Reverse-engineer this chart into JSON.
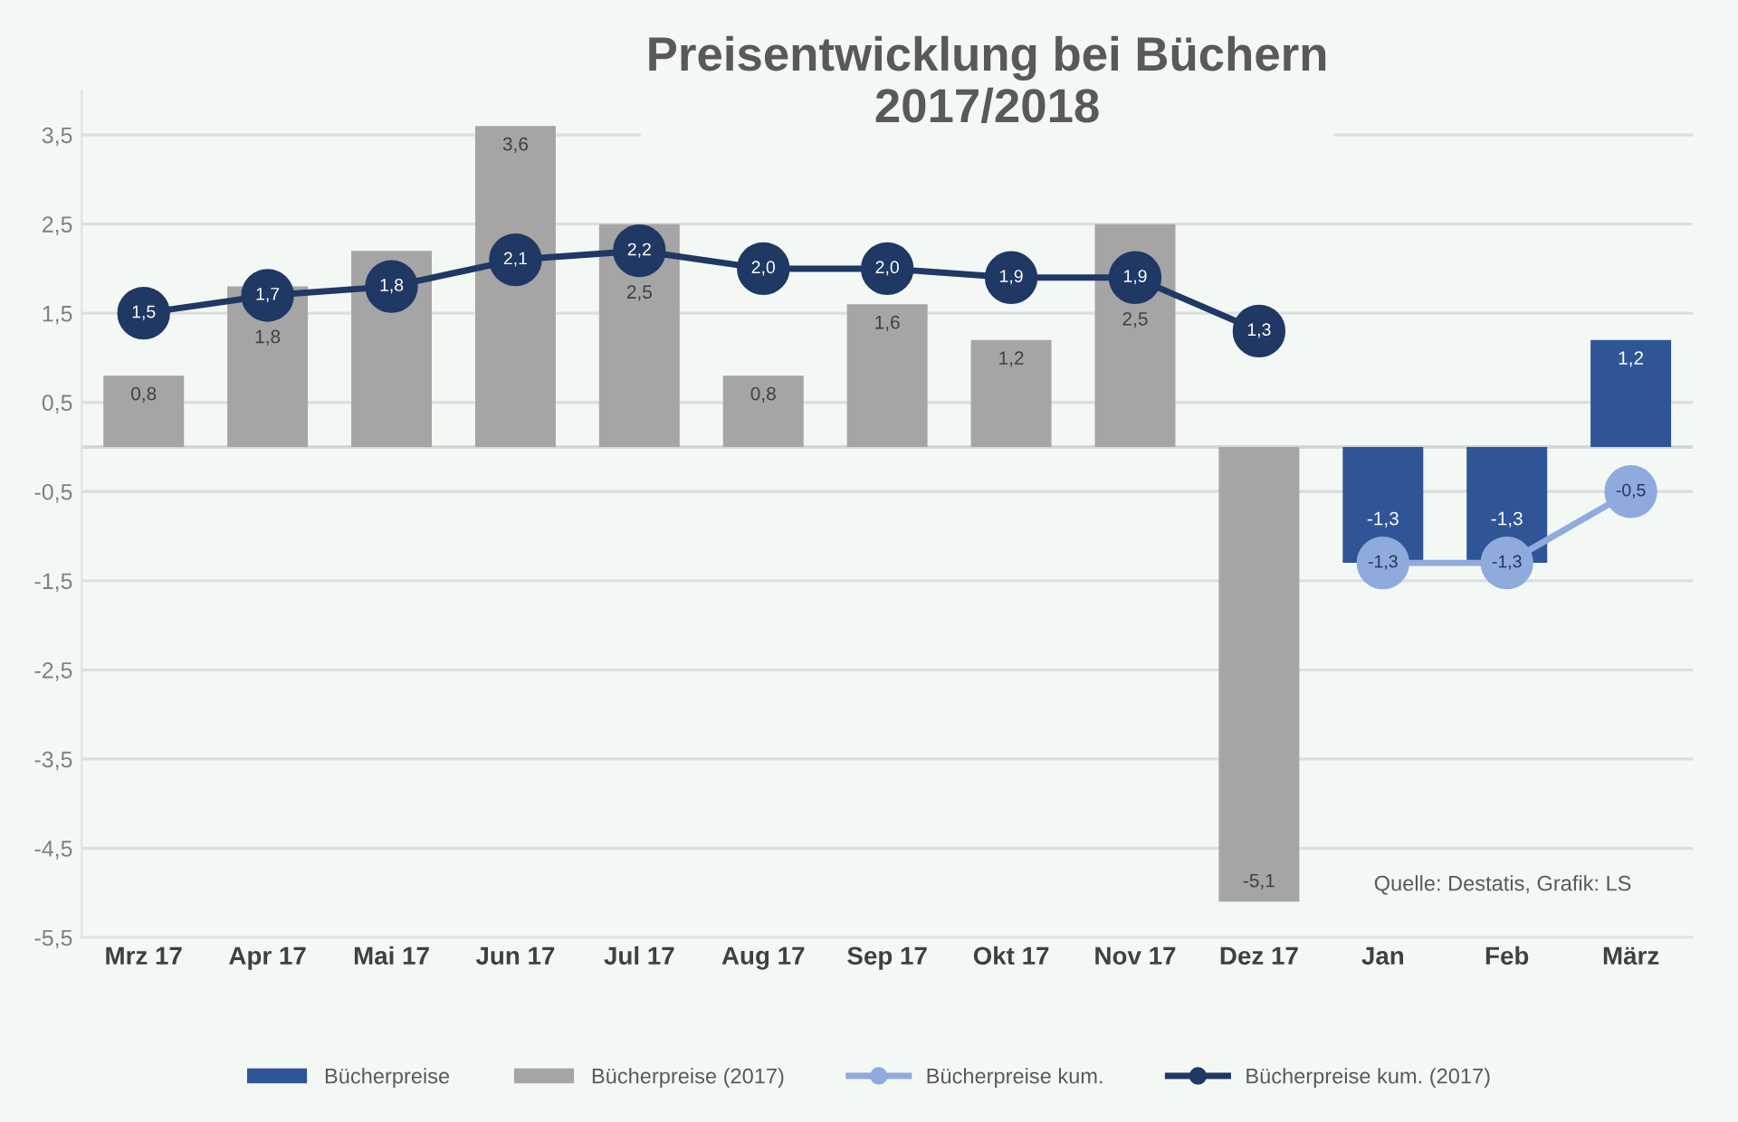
{
  "chart_data": {
    "type": "bar",
    "title": "Preisentwicklung bei Büchern 2017/2018",
    "categories": [
      "Mrz 17",
      "Apr 17",
      "Mai 17",
      "Jun 17",
      "Jul 17",
      "Aug 17",
      "Sep 17",
      "Okt 17",
      "Nov 17",
      "Dez 17",
      "Jan",
      "Feb",
      "März"
    ],
    "series": [
      {
        "name": "Bücherpreise",
        "color": "#2f5597",
        "values": [
          null,
          null,
          null,
          null,
          null,
          null,
          null,
          null,
          null,
          null,
          -1.3,
          -1.3,
          1.2
        ],
        "value_labels": [
          null,
          null,
          null,
          null,
          null,
          null,
          null,
          null,
          null,
          null,
          "-1,3",
          "-1,3",
          "1,2"
        ]
      },
      {
        "name": "Bücherpreise (2017)",
        "color": "#a5a5a5",
        "values": [
          0.8,
          1.8,
          2.2,
          3.6,
          2.5,
          0.8,
          1.6,
          1.2,
          2.5,
          -5.1,
          null,
          null,
          null
        ],
        "value_labels": [
          "0,8",
          "1,8",
          null,
          "3,6",
          "2,5",
          "0,8",
          "1,6",
          "1,2",
          "2,5",
          "-5,1",
          null,
          null,
          null
        ]
      },
      {
        "name": "Bücherpreise kum.",
        "type": "line",
        "color": "#8faadc",
        "values": [
          null,
          null,
          null,
          null,
          null,
          null,
          null,
          null,
          null,
          null,
          -1.3,
          -1.3,
          -0.5
        ],
        "value_labels": [
          null,
          null,
          null,
          null,
          null,
          null,
          null,
          null,
          null,
          null,
          "-1,3",
          "-1,3",
          "-0,5"
        ]
      },
      {
        "name": "Bücherpreise kum. (2017)",
        "type": "line",
        "color": "#1f3864",
        "values": [
          1.5,
          1.7,
          1.8,
          2.1,
          2.2,
          2.0,
          2.0,
          1.9,
          1.9,
          1.3,
          null,
          null,
          null
        ],
        "value_labels": [
          "1,5",
          "1,7",
          "1,8",
          "2,1",
          "2,2",
          "2,0",
          "2,0",
          "1,9",
          "1,9",
          "1,3",
          null,
          null,
          null
        ]
      }
    ],
    "ylim": [
      -5.5,
      4
    ],
    "yticks": [
      {
        "value": -5.5,
        "label": "-5,5"
      },
      {
        "value": -4.5,
        "label": "-4,5"
      },
      {
        "value": -3.5,
        "label": "-3,5"
      },
      {
        "value": -2.5,
        "label": "-2,5"
      },
      {
        "value": -1.5,
        "label": "-1,5"
      },
      {
        "value": -0.5,
        "label": "-0,5"
      },
      {
        "value": 0.5,
        "label": "0,5"
      },
      {
        "value": 1.5,
        "label": "1,5"
      },
      {
        "value": 2.5,
        "label": "2,5"
      },
      {
        "value": 3.5,
        "label": "3,5"
      }
    ],
    "grid": "y",
    "legend": "bottom",
    "marker": "circle",
    "line_style": "solid",
    "annotations": [
      "Quelle: Destatis, Grafik: LS"
    ]
  }
}
